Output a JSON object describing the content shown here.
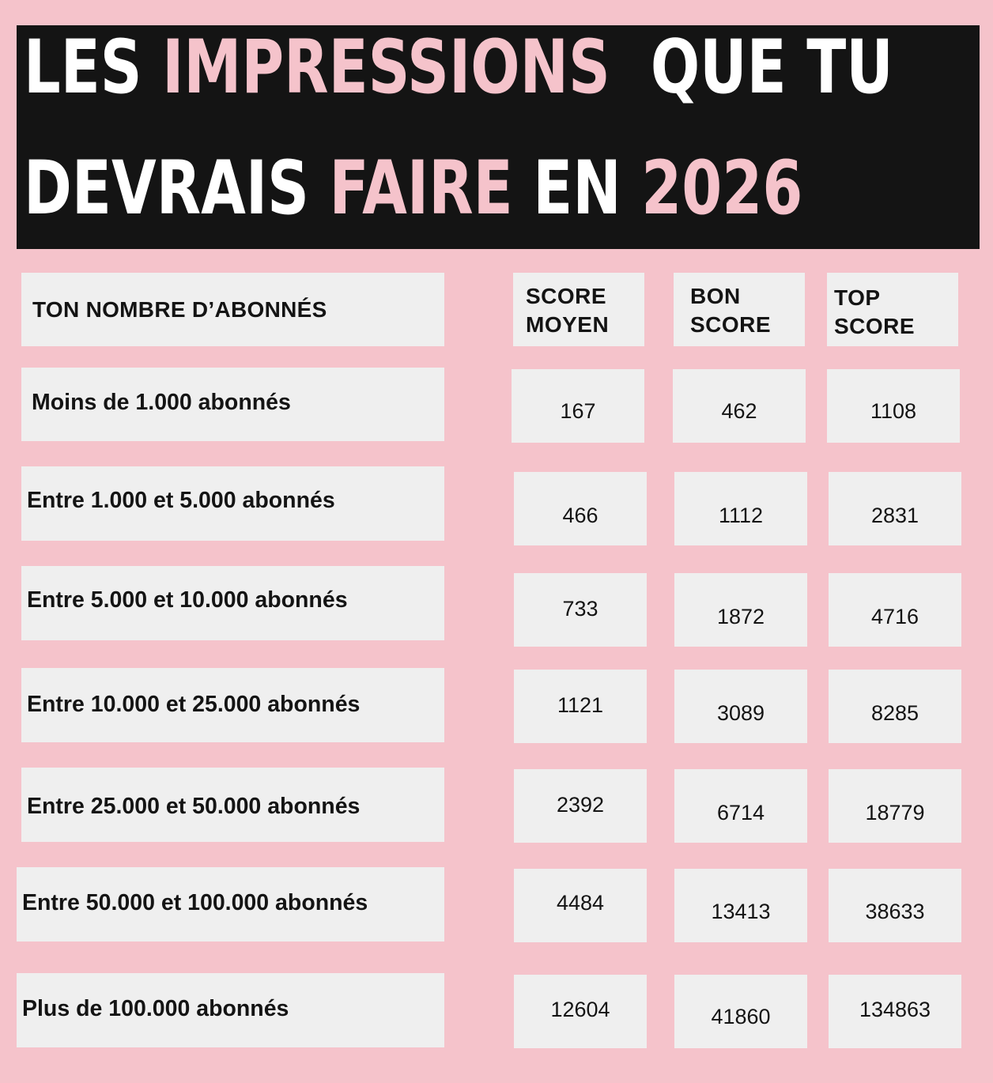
{
  "title": {
    "line1": [
      {
        "text": "LES ",
        "color": "#ffffff"
      },
      {
        "text": "IMPRESSIONS",
        "color": "#f5c3cb"
      },
      {
        "text": "  QUE TU",
        "color": "#ffffff"
      }
    ],
    "line2": [
      {
        "text": "DEVRAIS ",
        "color": "#ffffff"
      },
      {
        "text": "FAIRE",
        "color": "#f5c3cb"
      },
      {
        "text": " EN ",
        "color": "#ffffff"
      },
      {
        "text": "2026",
        "color": "#f5c3cb"
      }
    ]
  },
  "table": {
    "header": {
      "followers": "TON NOMBRE D’ABONNÉS",
      "col1_line1": "SCORE",
      "col1_line2": "MOYEN",
      "col2_line1": "BON",
      "col2_line2": "SCORE",
      "col3_line1": "TOP",
      "col3_line2": "SCORE"
    },
    "rows": [
      {
        "label": "Moins de 1.000 abonnés",
        "moyen": "167",
        "bon": "462",
        "top": "1108"
      },
      {
        "label": "Entre 1.000 et 5.000 abonnés",
        "moyen": "466",
        "bon": "1112",
        "top": "2831"
      },
      {
        "label": "Entre 5.000 et 10.000 abonnés",
        "moyen": "733",
        "bon": "1872",
        "top": "4716"
      },
      {
        "label": "Entre 10.000 et 25.000 abonnés",
        "moyen": "1121",
        "bon": "3089",
        "top": "8285"
      },
      {
        "label": "Entre 25.000 et 50.000 abonnés",
        "moyen": "2392",
        "bon": "6714",
        "top": "18779"
      },
      {
        "label": "Entre 50.000 et 100.000 abonnés",
        "moyen": "4484",
        "bon": "13413",
        "top": "38633"
      },
      {
        "label": "Plus de 100.000 abonnés",
        "moyen": "12604",
        "bon": "41860",
        "top": "134863"
      }
    ]
  },
  "colors": {
    "background": "#f5c3cb",
    "banner": "#141414",
    "cell": "#efefef",
    "text": "#141414",
    "accent": "#f5c3cb"
  }
}
